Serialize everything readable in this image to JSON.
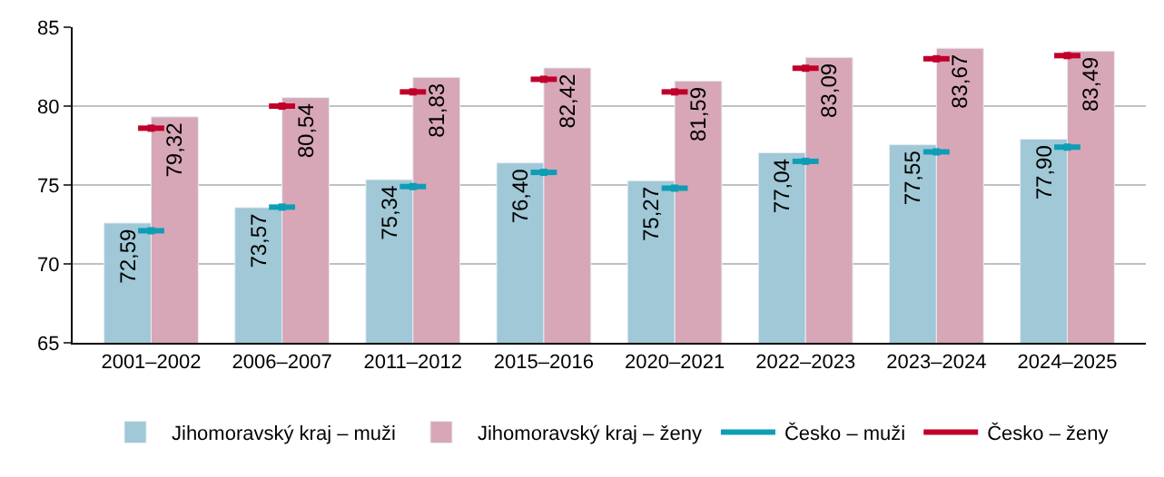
{
  "chart_data": {
    "type": "bar",
    "categories": [
      "2001–2002",
      "2006–2007",
      "2011–2012",
      "2015–2016",
      "2020–2021",
      "2022–2023",
      "2023–2024",
      "2024–2025"
    ],
    "series": [
      {
        "name": "Jihomoravský kraj – muži",
        "color": "#a0c8d6",
        "values": [
          72.59,
          73.57,
          75.34,
          76.4,
          75.27,
          77.04,
          77.55,
          77.9
        ],
        "value_labels": [
          "72,59",
          "73,57",
          "75,34",
          "76,40",
          "75,27",
          "77,04",
          "77,55",
          "77,90"
        ]
      },
      {
        "name": "Jihomoravský kraj – ženy",
        "color": "#d7a7b7",
        "values": [
          79.32,
          80.54,
          81.83,
          82.42,
          81.59,
          83.09,
          83.67,
          83.49
        ],
        "value_labels": [
          "79,32",
          "80,54",
          "81,83",
          "82,42",
          "81,59",
          "83,09",
          "83,67",
          "83,49"
        ]
      },
      {
        "name": "Česko – muži",
        "type": "scatter",
        "color": "#0e9db5",
        "values": [
          72.1,
          73.6,
          74.9,
          75.8,
          74.8,
          76.5,
          77.1,
          77.4
        ]
      },
      {
        "name": "Česko – ženy",
        "type": "scatter",
        "color": "#c0002a",
        "values": [
          78.6,
          80.0,
          80.9,
          81.7,
          80.9,
          82.4,
          83.0,
          83.2
        ]
      }
    ],
    "ylim": [
      65,
      85
    ],
    "yticks": [
      65,
      70,
      75,
      80,
      85
    ],
    "grid": "y",
    "legend": "bottom"
  }
}
